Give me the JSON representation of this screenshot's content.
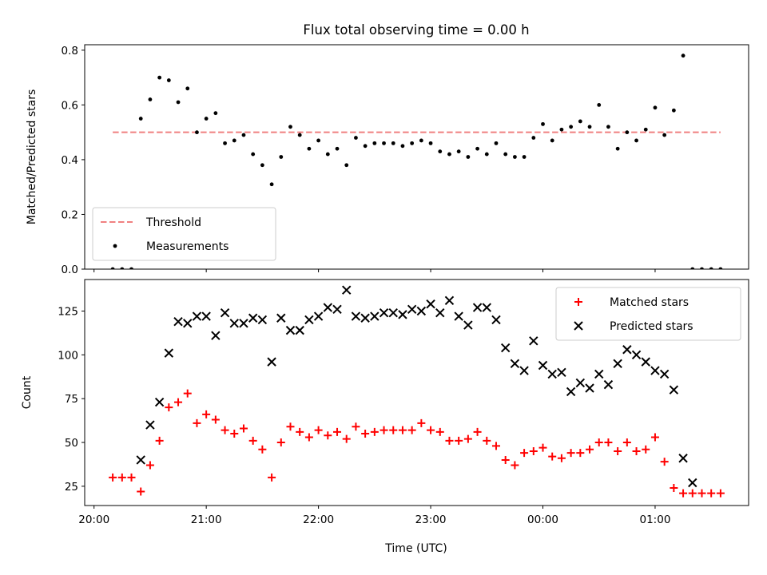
{
  "figure": {
    "title": "Flux total observing time = 0.00 h",
    "xlabel": "Time (UTC)"
  },
  "chart_data": [
    {
      "type": "scatter",
      "ylabel": "Matched/Predicted stars",
      "ylim": [
        0,
        0.82
      ],
      "yticks": [
        "0.0",
        "0.2",
        "0.4",
        "0.6",
        "0.8"
      ],
      "ytick_values": [
        0,
        0.2,
        0.4,
        0.6,
        0.8
      ],
      "legend_position": "lower-left",
      "series": [
        {
          "name": "Threshold",
          "style": "dashed-line",
          "color": "#f08080",
          "points": [
            [
              "20:10",
              0.5
            ],
            [
              "00:30",
              0.5
            ],
            [
              "01:35",
              0.5
            ]
          ]
        },
        {
          "name": "Measurements",
          "style": "dot",
          "color": "#000000",
          "points": [
            [
              "20:10",
              0.0
            ],
            [
              "20:15",
              0.0
            ],
            [
              "20:20",
              0.0
            ],
            [
              "20:25",
              0.55
            ],
            [
              "20:30",
              0.62
            ],
            [
              "20:35",
              0.7
            ],
            [
              "20:40",
              0.69
            ],
            [
              "20:45",
              0.61
            ],
            [
              "20:50",
              0.66
            ],
            [
              "20:55",
              0.5
            ],
            [
              "21:00",
              0.55
            ],
            [
              "21:05",
              0.57
            ],
            [
              "21:10",
              0.46
            ],
            [
              "21:15",
              0.47
            ],
            [
              "21:20",
              0.49
            ],
            [
              "21:25",
              0.42
            ],
            [
              "21:30",
              0.38
            ],
            [
              "21:35",
              0.31
            ],
            [
              "21:40",
              0.41
            ],
            [
              "21:45",
              0.52
            ],
            [
              "21:50",
              0.49
            ],
            [
              "21:55",
              0.44
            ],
            [
              "22:00",
              0.47
            ],
            [
              "22:05",
              0.42
            ],
            [
              "22:10",
              0.44
            ],
            [
              "22:15",
              0.38
            ],
            [
              "22:20",
              0.48
            ],
            [
              "22:25",
              0.45
            ],
            [
              "22:30",
              0.46
            ],
            [
              "22:35",
              0.46
            ],
            [
              "22:40",
              0.46
            ],
            [
              "22:45",
              0.45
            ],
            [
              "22:50",
              0.46
            ],
            [
              "22:55",
              0.47
            ],
            [
              "23:00",
              0.46
            ],
            [
              "23:05",
              0.43
            ],
            [
              "23:10",
              0.42
            ],
            [
              "23:15",
              0.43
            ],
            [
              "23:20",
              0.41
            ],
            [
              "23:25",
              0.44
            ],
            [
              "23:30",
              0.42
            ],
            [
              "23:35",
              0.46
            ],
            [
              "23:40",
              0.42
            ],
            [
              "23:45",
              0.41
            ],
            [
              "23:50",
              0.41
            ],
            [
              "23:55",
              0.48
            ],
            [
              "00:00",
              0.53
            ],
            [
              "00:05",
              0.47
            ],
            [
              "00:10",
              0.51
            ],
            [
              "00:15",
              0.52
            ],
            [
              "00:20",
              0.54
            ],
            [
              "00:25",
              0.52
            ],
            [
              "00:30",
              0.6
            ],
            [
              "00:35",
              0.52
            ],
            [
              "00:40",
              0.44
            ],
            [
              "00:45",
              0.5
            ],
            [
              "00:50",
              0.47
            ],
            [
              "00:55",
              0.51
            ],
            [
              "01:00",
              0.59
            ],
            [
              "01:05",
              0.49
            ],
            [
              "01:10",
              0.58
            ],
            [
              "01:15",
              0.78
            ],
            [
              "01:20",
              0.0
            ],
            [
              "01:25",
              0.0
            ],
            [
              "01:30",
              0.0
            ],
            [
              "01:35",
              0.0
            ]
          ]
        }
      ]
    },
    {
      "type": "scatter",
      "ylabel": "Count",
      "ylim": [
        14,
        143
      ],
      "yticks": [
        "25",
        "50",
        "75",
        "100",
        "125"
      ],
      "ytick_values": [
        25,
        50,
        75,
        100,
        125
      ],
      "legend_position": "upper-right",
      "series": [
        {
          "name": "Matched stars",
          "style": "plus",
          "color": "#ff0000",
          "points": [
            [
              "20:10",
              30
            ],
            [
              "20:15",
              30
            ],
            [
              "20:20",
              30
            ],
            [
              "20:25",
              22
            ],
            [
              "20:30",
              37
            ],
            [
              "20:35",
              51
            ],
            [
              "20:40",
              70
            ],
            [
              "20:45",
              73
            ],
            [
              "20:50",
              78
            ],
            [
              "20:55",
              61
            ],
            [
              "21:00",
              66
            ],
            [
              "21:05",
              63
            ],
            [
              "21:10",
              57
            ],
            [
              "21:15",
              55
            ],
            [
              "21:20",
              58
            ],
            [
              "21:25",
              51
            ],
            [
              "21:30",
              46
            ],
            [
              "21:35",
              30
            ],
            [
              "21:40",
              50
            ],
            [
              "21:45",
              59
            ],
            [
              "21:50",
              56
            ],
            [
              "21:55",
              53
            ],
            [
              "22:00",
              57
            ],
            [
              "22:05",
              54
            ],
            [
              "22:10",
              56
            ],
            [
              "22:15",
              52
            ],
            [
              "22:20",
              59
            ],
            [
              "22:25",
              55
            ],
            [
              "22:30",
              56
            ],
            [
              "22:35",
              57
            ],
            [
              "22:40",
              57
            ],
            [
              "22:45",
              57
            ],
            [
              "22:50",
              57
            ],
            [
              "22:55",
              61
            ],
            [
              "23:00",
              57
            ],
            [
              "23:05",
              56
            ],
            [
              "23:10",
              51
            ],
            [
              "23:15",
              51
            ],
            [
              "23:20",
              52
            ],
            [
              "23:25",
              56
            ],
            [
              "23:30",
              51
            ],
            [
              "23:35",
              48
            ],
            [
              "23:40",
              40
            ],
            [
              "23:45",
              37
            ],
            [
              "23:50",
              44
            ],
            [
              "23:55",
              45
            ],
            [
              "00:00",
              47
            ],
            [
              "00:05",
              42
            ],
            [
              "00:10",
              41
            ],
            [
              "00:15",
              44
            ],
            [
              "00:20",
              44
            ],
            [
              "00:25",
              46
            ],
            [
              "00:30",
              50
            ],
            [
              "00:35",
              50
            ],
            [
              "00:40",
              45
            ],
            [
              "00:45",
              50
            ],
            [
              "00:50",
              45
            ],
            [
              "00:55",
              46
            ],
            [
              "01:00",
              53
            ],
            [
              "01:05",
              39
            ],
            [
              "01:10",
              24
            ],
            [
              "01:15",
              21
            ],
            [
              "01:20",
              21
            ],
            [
              "01:25",
              21
            ],
            [
              "01:30",
              21
            ],
            [
              "01:35",
              21
            ]
          ]
        },
        {
          "name": "Predicted stars",
          "style": "x",
          "color": "#000000",
          "points": [
            [
              "20:25",
              40
            ],
            [
              "20:30",
              60
            ],
            [
              "20:35",
              73
            ],
            [
              "20:40",
              101
            ],
            [
              "20:45",
              119
            ],
            [
              "20:50",
              118
            ],
            [
              "20:55",
              122
            ],
            [
              "21:00",
              122
            ],
            [
              "21:05",
              111
            ],
            [
              "21:10",
              124
            ],
            [
              "21:15",
              118
            ],
            [
              "21:20",
              118
            ],
            [
              "21:25",
              121
            ],
            [
              "21:30",
              120
            ],
            [
              "21:35",
              96
            ],
            [
              "21:40",
              121
            ],
            [
              "21:45",
              114
            ],
            [
              "21:50",
              114
            ],
            [
              "21:55",
              120
            ],
            [
              "22:00",
              122
            ],
            [
              "22:05",
              127
            ],
            [
              "22:10",
              126
            ],
            [
              "22:15",
              137
            ],
            [
              "22:20",
              122
            ],
            [
              "22:25",
              121
            ],
            [
              "22:30",
              122
            ],
            [
              "22:35",
              124
            ],
            [
              "22:40",
              124
            ],
            [
              "22:45",
              123
            ],
            [
              "22:50",
              126
            ],
            [
              "22:55",
              125
            ],
            [
              "23:00",
              129
            ],
            [
              "23:05",
              124
            ],
            [
              "23:10",
              131
            ],
            [
              "23:15",
              122
            ],
            [
              "23:20",
              117
            ],
            [
              "23:25",
              127
            ],
            [
              "23:30",
              127
            ],
            [
              "23:35",
              120
            ],
            [
              "23:40",
              104
            ],
            [
              "23:45",
              95
            ],
            [
              "23:50",
              91
            ],
            [
              "23:55",
              108
            ],
            [
              "00:00",
              94
            ],
            [
              "00:05",
              89
            ],
            [
              "00:10",
              90
            ],
            [
              "00:15",
              79
            ],
            [
              "00:20",
              84
            ],
            [
              "00:25",
              81
            ],
            [
              "00:30",
              89
            ],
            [
              "00:35",
              83
            ],
            [
              "00:40",
              95
            ],
            [
              "00:45",
              103
            ],
            [
              "00:50",
              100
            ],
            [
              "00:55",
              96
            ],
            [
              "01:00",
              91
            ],
            [
              "01:05",
              89
            ],
            [
              "01:10",
              80
            ],
            [
              "01:15",
              41
            ],
            [
              "01:20",
              27
            ]
          ]
        }
      ]
    }
  ],
  "xaxis": {
    "range": [
      "19:55",
      "01:50"
    ],
    "ticks": [
      "20:00",
      "21:00",
      "22:00",
      "23:00",
      "00:00",
      "01:00"
    ]
  }
}
